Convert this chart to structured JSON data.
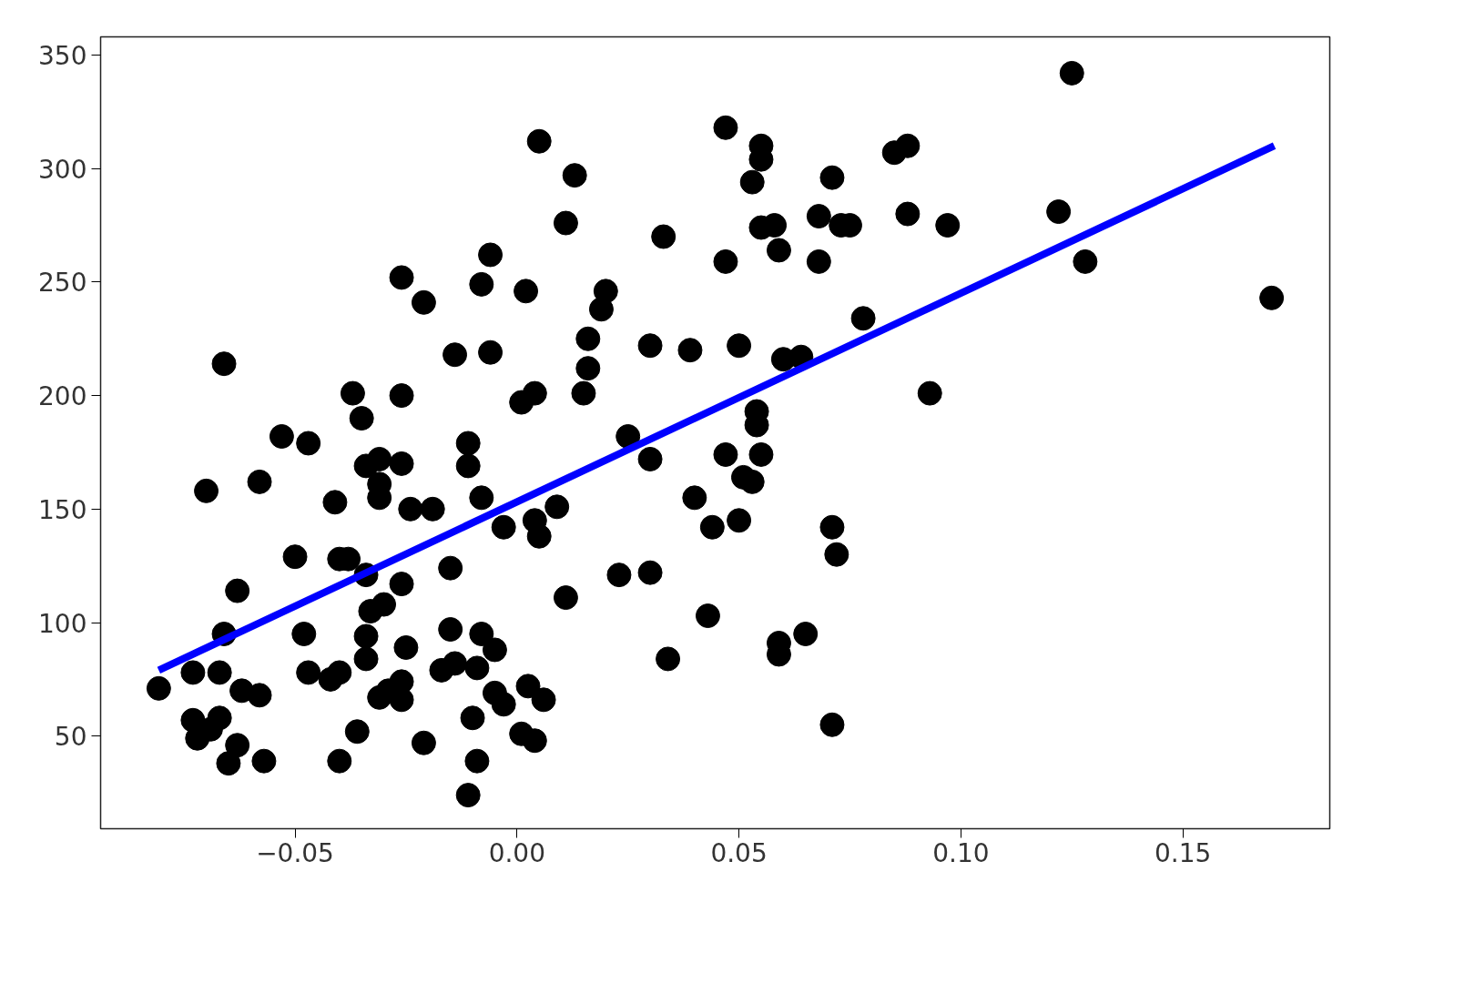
{
  "chart_data": {
    "type": "scatter",
    "marker": "circle",
    "grid": false,
    "xlim": [
      -0.0938,
      0.1831
    ],
    "ylim": [
      9.2,
      358
    ],
    "xticks": [
      {
        "value": -0.05,
        "label": "−0.05"
      },
      {
        "value": 0.0,
        "label": "0.00"
      },
      {
        "value": 0.05,
        "label": "0.05"
      },
      {
        "value": 0.1,
        "label": "0.10"
      },
      {
        "value": 0.15,
        "label": "0.15"
      }
    ],
    "yticks": [
      50,
      100,
      150,
      200,
      250,
      300,
      350
    ],
    "series": [
      {
        "color": "#000000",
        "x": [
          -0.0807,
          -0.073,
          -0.067,
          -0.073,
          -0.072,
          -0.069,
          -0.067,
          -0.063,
          -0.065,
          -0.057,
          -0.062,
          -0.058,
          -0.063,
          -0.066,
          -0.07,
          -0.066,
          -0.058,
          -0.053,
          -0.047,
          -0.05,
          -0.048,
          -0.047,
          -0.042,
          -0.04,
          -0.041,
          -0.037,
          -0.035,
          -0.034,
          -0.031,
          -0.031,
          -0.031,
          -0.04,
          -0.038,
          -0.034,
          -0.033,
          -0.03,
          -0.034,
          -0.034,
          -0.036,
          -0.04,
          -0.031,
          -0.029,
          -0.026,
          -0.026,
          -0.026,
          -0.025,
          -0.026,
          -0.026,
          -0.021,
          -0.026,
          -0.024,
          -0.019,
          -0.021,
          -0.017,
          -0.014,
          -0.015,
          -0.015,
          -0.014,
          -0.011,
          -0.011,
          -0.011,
          -0.01,
          -0.009,
          -0.009,
          -0.008,
          -0.005,
          -0.008,
          -0.008,
          -0.006,
          -0.006,
          -0.005,
          -0.003,
          -0.003,
          0.001,
          0.004,
          0.002,
          0.005,
          0.001,
          0.0025,
          0.004,
          0.006,
          0.004,
          0.005,
          0.009,
          0.011,
          0.011,
          0.013,
          0.015,
          0.016,
          0.016,
          0.019,
          0.02,
          0.023,
          0.025,
          0.03,
          0.03,
          0.03,
          0.033,
          0.034,
          0.039,
          0.04,
          0.044,
          0.043,
          0.047,
          0.047,
          0.047,
          0.05,
          0.05,
          0.051,
          0.053,
          0.054,
          0.054,
          0.055,
          0.053,
          0.055,
          0.055,
          0.055,
          0.058,
          0.059,
          0.06,
          0.064,
          0.059,
          0.059,
          0.065,
          0.068,
          0.068,
          0.071,
          0.073,
          0.075,
          0.078,
          0.071,
          0.072,
          0.071,
          0.085,
          0.088,
          0.088,
          0.097,
          0.093,
          0.122,
          0.125,
          0.128,
          0.17
        ],
        "values": [
          71,
          78,
          78,
          57,
          49,
          53,
          58,
          46,
          38,
          39,
          70,
          68,
          114,
          95,
          158,
          214,
          162,
          182,
          179,
          129,
          95,
          78,
          75,
          78,
          153,
          201,
          190,
          169,
          172,
          161,
          155,
          128,
          128,
          121,
          105,
          108,
          94,
          84,
          52,
          39,
          67,
          70,
          74,
          66,
          117,
          89,
          200,
          252,
          241,
          170,
          150,
          150,
          47,
          79,
          82,
          124,
          97,
          218,
          179,
          169,
          24,
          58,
          39,
          80,
          95,
          88,
          155,
          249,
          262,
          219,
          69,
          64,
          142,
          197,
          201,
          246,
          312,
          51,
          72,
          48,
          66,
          145,
          138,
          151,
          111,
          276,
          297,
          201,
          212,
          225,
          238,
          246,
          121,
          182,
          222,
          172,
          122,
          270,
          84,
          220,
          155,
          142,
          103,
          174,
          259,
          318,
          222,
          145,
          164,
          162,
          193,
          187,
          174,
          294,
          310,
          304,
          274,
          275,
          264,
          216,
          217,
          91,
          86,
          95,
          279,
          259,
          296,
          275,
          275,
          234,
          142,
          130,
          55,
          307,
          310,
          280,
          275,
          201,
          281,
          342,
          259,
          243
        ]
      },
      {
        "type": "line",
        "marker": "none",
        "color": "#0000ff",
        "x": [
          -0.0807,
          0.1706
        ],
        "values": [
          79,
          310
        ]
      }
    ]
  }
}
